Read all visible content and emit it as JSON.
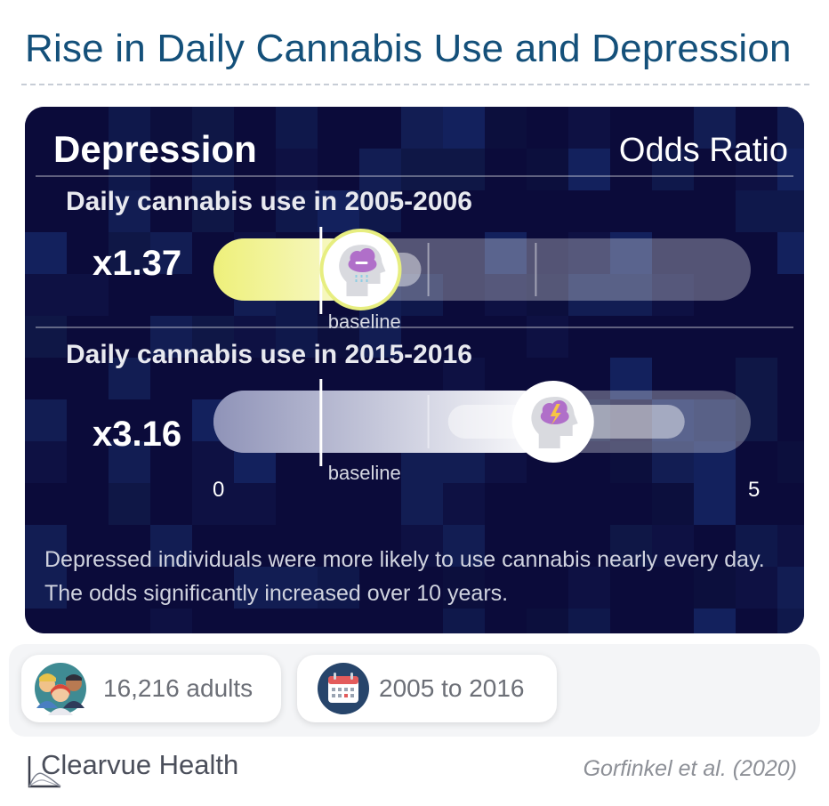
{
  "header": {
    "title": "Rise in Daily Cannabis Use and Depression"
  },
  "panel": {
    "title": "Depression",
    "metric_label": "Odds Ratio",
    "caption": "Depressed individuals were more likely to use cannabis nearly every day. The odds significantly increased over 10 years."
  },
  "chart_data": {
    "type": "bar",
    "orientation": "horizontal",
    "categories": [
      "Daily cannabis use in 2005-2006",
      "Daily cannabis use in 2015-2016"
    ],
    "values": [
      1.37,
      3.16
    ],
    "value_labels": [
      "x1.37",
      "x3.16"
    ],
    "baseline": 1,
    "baseline_label": "baseline",
    "xlim": [
      0,
      5
    ],
    "x_tick_labels": [
      "0",
      "5"
    ],
    "ticks": [
      1,
      2,
      3
    ],
    "icons": [
      "head-rain-cloud-icon",
      "head-storm-cloud-icon"
    ],
    "bar_colors": [
      "#eef07a",
      "#8f93b8"
    ]
  },
  "stats": [
    {
      "label": "16,216 adults",
      "icon": "people-icon"
    },
    {
      "label": "2005 to 2016",
      "icon": "calendar-icon"
    }
  ],
  "footer": {
    "brand": "Clearvue Health",
    "citation": "Gorfinkel et al. (2020)"
  }
}
